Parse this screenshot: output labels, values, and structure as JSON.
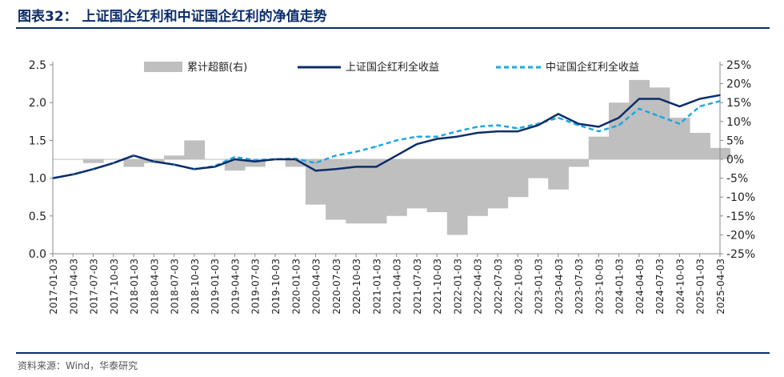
{
  "title": "图表32：  上证国企红利和中证国企红利的净值走势",
  "source": "资料来源：Wind，华泰研究",
  "colors": {
    "sh": "#0b2d6b",
    "zz": "#1ea7e1",
    "excess": "#bfbfbf",
    "rule": "#0b2d6b"
  },
  "chart_data": {
    "type": "line",
    "legend": [
      "累计超额(右)",
      "上证国企红利全收益",
      "中证国企红利全收益"
    ],
    "legend_position": "top",
    "yleft": {
      "min": 0.0,
      "max": 2.5,
      "ticks": [
        "0.0",
        "0.5",
        "1.0",
        "1.5",
        "2.0",
        "2.5"
      ]
    },
    "yright": {
      "min": -25,
      "max": 25,
      "ticks": [
        "-25%",
        "-20%",
        "-15%",
        "-10%",
        "-5%",
        "0%",
        "5%",
        "10%",
        "15%",
        "20%",
        "25%"
      ]
    },
    "x_ticks": [
      "2017-01-03",
      "2017-04-03",
      "2017-07-03",
      "2017-10-03",
      "2018-01-03",
      "2018-04-03",
      "2018-07-03",
      "2018-10-03",
      "2019-01-03",
      "2019-04-03",
      "2019-07-03",
      "2019-10-03",
      "2020-01-03",
      "2020-04-03",
      "2020-07-03",
      "2020-10-03",
      "2021-01-03",
      "2021-04-03",
      "2021-07-03",
      "2021-10-03",
      "2022-01-03",
      "2022-04-03",
      "2022-07-03",
      "2022-10-03",
      "2023-01-03",
      "2023-04-03",
      "2023-07-03",
      "2023-10-03",
      "2024-01-03",
      "2024-04-03",
      "2024-07-03",
      "2024-10-03",
      "2025-01-03",
      "2025-04-03"
    ],
    "series": [
      {
        "name": "上证国企红利全收益",
        "axis": "left",
        "values": [
          1.0,
          1.05,
          1.12,
          1.2,
          1.3,
          1.22,
          1.18,
          1.12,
          1.15,
          1.25,
          1.22,
          1.25,
          1.25,
          1.1,
          1.12,
          1.15,
          1.15,
          1.3,
          1.45,
          1.52,
          1.55,
          1.6,
          1.62,
          1.62,
          1.7,
          1.85,
          1.72,
          1.68,
          1.8,
          2.05,
          2.05,
          1.95,
          2.05,
          2.1
        ]
      },
      {
        "name": "中证国企红利全收益",
        "axis": "left",
        "values": [
          1.0,
          1.05,
          1.12,
          1.2,
          1.3,
          1.22,
          1.18,
          1.12,
          1.16,
          1.28,
          1.24,
          1.25,
          1.26,
          1.2,
          1.3,
          1.35,
          1.42,
          1.5,
          1.55,
          1.55,
          1.62,
          1.68,
          1.7,
          1.66,
          1.72,
          1.8,
          1.7,
          1.62,
          1.7,
          1.92,
          1.82,
          1.72,
          1.95,
          2.02
        ]
      },
      {
        "name": "累计超额(右)",
        "axis": "right",
        "type": "area",
        "values": [
          0,
          0,
          -1,
          0,
          -2,
          -1,
          1,
          5,
          0,
          -3,
          -2,
          0,
          -2,
          -12,
          -16,
          -17,
          -17,
          -15,
          -13,
          -14,
          -20,
          -15,
          -13,
          -10,
          -5,
          -8,
          -2,
          6,
          15,
          21,
          19,
          11,
          7,
          3
        ]
      }
    ]
  }
}
